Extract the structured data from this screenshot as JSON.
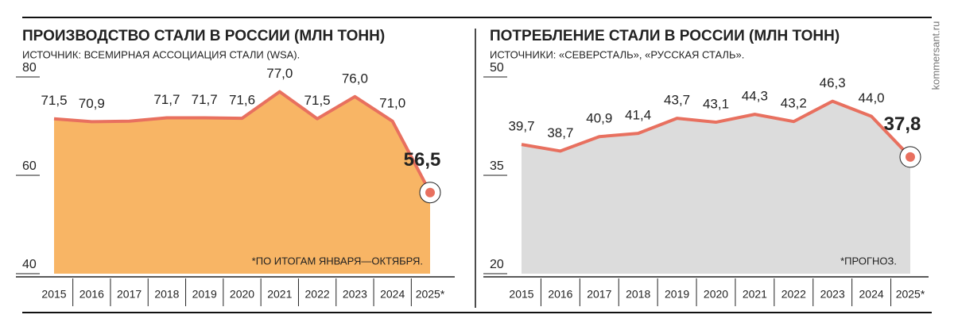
{
  "chart_data": [
    {
      "type": "area",
      "title": "ПРОИЗВОДСТВО СТАЛИ В РОССИИ (МЛН ТОНН)",
      "subtitle": "ИСТОЧНИК: ВСЕМИРНАЯ АССОЦИАЦИЯ СТАЛИ (WSA).",
      "annotation": "*ПО ИТОГАМ ЯНВАРЯ—ОКТЯБРЯ.",
      "categories": [
        "2015",
        "2016",
        "2017",
        "2018",
        "2019",
        "2020",
        "2021",
        "2022",
        "2023",
        "2024",
        "2025*"
      ],
      "values": [
        71.5,
        70.9,
        71.0,
        71.7,
        71.7,
        71.6,
        77.0,
        71.5,
        76.0,
        71.0,
        56.5
      ],
      "value_labels": [
        "71,5",
        "70,9",
        null,
        "71,7",
        "71,7",
        "71,6",
        "77,0",
        "71,5",
        "76,0",
        "71,0",
        "56,5"
      ],
      "ylim": [
        40,
        80
      ],
      "yticks": [
        80,
        60,
        40
      ],
      "color": "#f8b565",
      "line_color": "#e8705f"
    },
    {
      "type": "area",
      "title": "ПОТРЕБЛЕНИЕ СТАЛИ В РОССИИ (МЛН ТОНН)",
      "subtitle": "ИСТОЧНИКИ: «СЕВЕРСТАЛЬ», «РУССКАЯ СТАЛЬ».",
      "annotation": "*ПРОГНОЗ.",
      "categories": [
        "2015",
        "2016",
        "2017",
        "2018",
        "2019",
        "2020",
        "2021",
        "2022",
        "2023",
        "2024",
        "2025*"
      ],
      "values": [
        39.7,
        38.7,
        40.9,
        41.4,
        43.7,
        43.1,
        44.3,
        43.2,
        46.3,
        44.0,
        37.8
      ],
      "value_labels": [
        "39,7",
        "38,7",
        "40,9",
        "41,4",
        "43,7",
        "43,1",
        "44,3",
        "43,2",
        "46,3",
        "44,0",
        "37,8"
      ],
      "ylim": [
        20,
        50
      ],
      "yticks": [
        50,
        35,
        20
      ],
      "color": "#dcdcdc",
      "line_color": "#e8705f"
    }
  ],
  "source_mark": "kommersant.ru"
}
